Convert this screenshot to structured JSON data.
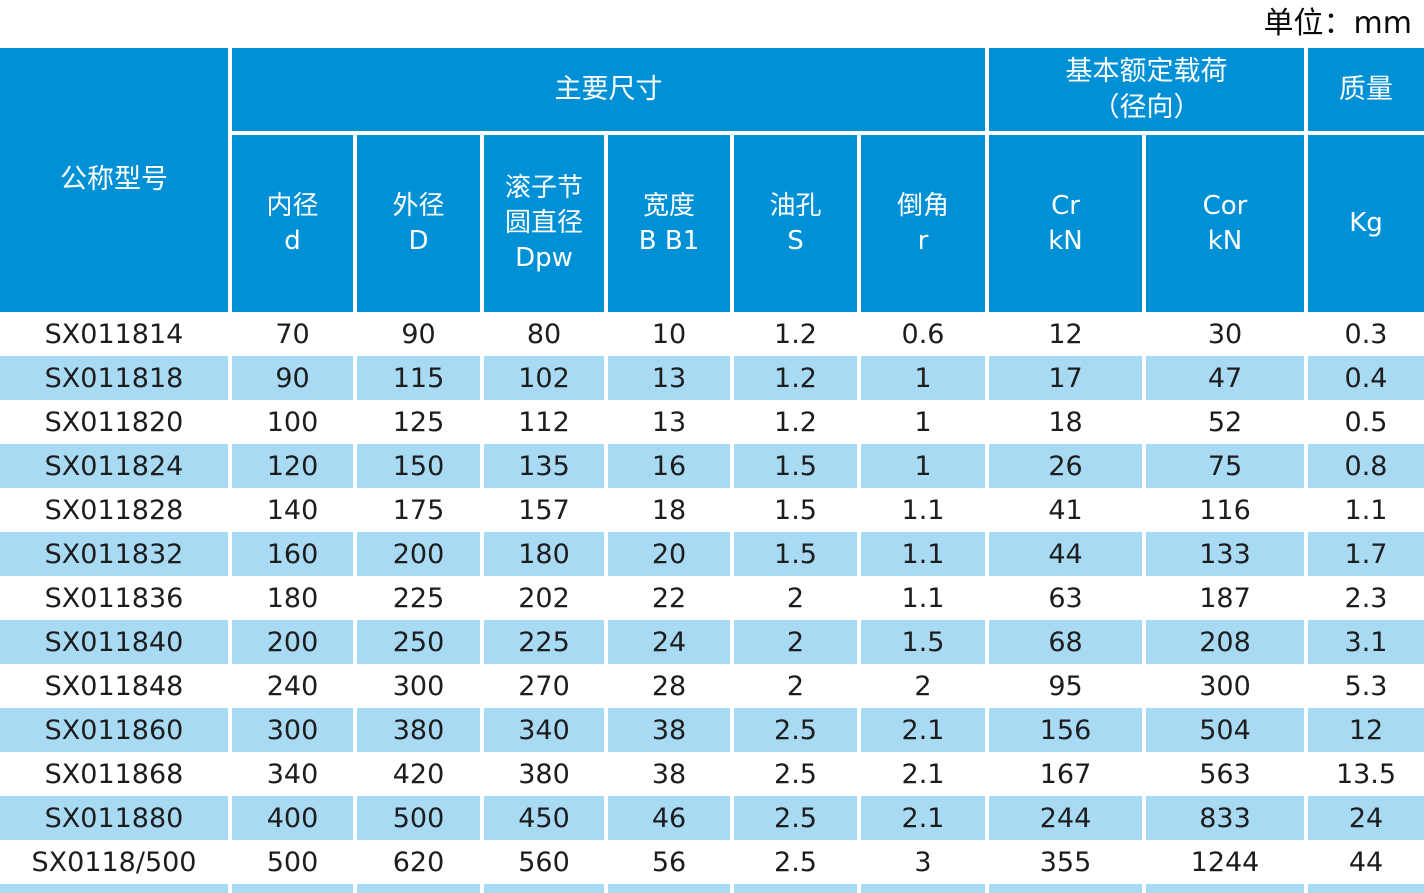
{
  "unit_note": "单位：mm",
  "colors": {
    "header_blue": "#0090D6",
    "stripe_blue": "#A9DAF3",
    "header_text": "#FFFFFF",
    "body_text": "#1D1D1D"
  },
  "chart_data": {
    "type": "table",
    "unit_note": "单位：mm",
    "column_groups": [
      {
        "label": "公称型号",
        "span": 1
      },
      {
        "label": "主要尺寸",
        "span": 6
      },
      {
        "label": "基本额定载荷\n（径向）",
        "span": 2
      },
      {
        "label": "质量",
        "span": 1
      }
    ],
    "columns": [
      "公称型号",
      "内径 d",
      "外径 D",
      "滚子节圆直径 Dpw",
      "宽度 B B1",
      "油孔 S",
      "倒角 r",
      "Cr kN",
      "Cor kN",
      "Kg"
    ],
    "sub_header_display": [
      "内径\nd",
      "外径\nD",
      "滚子节\n圆直径\nDpw",
      "宽度\nB B1",
      "油孔\nS",
      "倒角\nr",
      "Cr\nkN",
      "Cor\nkN",
      "Kg"
    ],
    "rows": [
      [
        "SX011814",
        "70",
        "90",
        "80",
        "10",
        "1.2",
        "0.6",
        "12",
        "30",
        "0.3"
      ],
      [
        "SX011818",
        "90",
        "115",
        "102",
        "13",
        "1.2",
        "1",
        "17",
        "47",
        "0.4"
      ],
      [
        "SX011820",
        "100",
        "125",
        "112",
        "13",
        "1.2",
        "1",
        "18",
        "52",
        "0.5"
      ],
      [
        "SX011824",
        "120",
        "150",
        "135",
        "16",
        "1.5",
        "1",
        "26",
        "75",
        "0.8"
      ],
      [
        "SX011828",
        "140",
        "175",
        "157",
        "18",
        "1.5",
        "1.1",
        "41",
        "116",
        "1.1"
      ],
      [
        "SX011832",
        "160",
        "200",
        "180",
        "20",
        "1.5",
        "1.1",
        "44",
        "133",
        "1.7"
      ],
      [
        "SX011836",
        "180",
        "225",
        "202",
        "22",
        "2",
        "1.1",
        "63",
        "187",
        "2.3"
      ],
      [
        "SX011840",
        "200",
        "250",
        "225",
        "24",
        "2",
        "1.5",
        "68",
        "208",
        "3.1"
      ],
      [
        "SX011848",
        "240",
        "300",
        "270",
        "28",
        "2",
        "2",
        "95",
        "300",
        "5.3"
      ],
      [
        "SX011860",
        "300",
        "380",
        "340",
        "38",
        "2.5",
        "2.1",
        "156",
        "504",
        "12"
      ],
      [
        "SX011868",
        "340",
        "420",
        "380",
        "38",
        "2.5",
        "2.1",
        "167",
        "563",
        "13.5"
      ],
      [
        "SX011880",
        "400",
        "500",
        "450",
        "46",
        "2.5",
        "2.1",
        "244",
        "833",
        "24"
      ],
      [
        "SX0118/500",
        "500",
        "620",
        "560",
        "56",
        "2.5",
        "3",
        "355",
        "1244",
        "44"
      ]
    ]
  }
}
